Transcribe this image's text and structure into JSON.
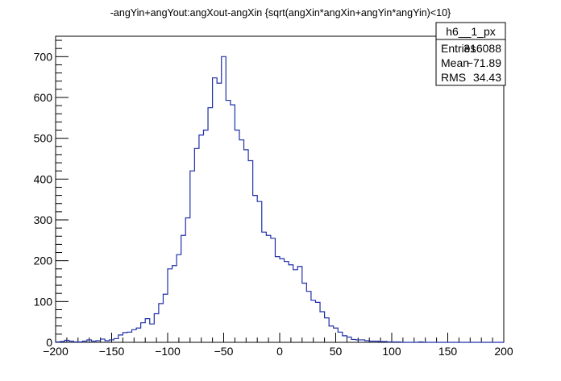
{
  "chart_data": {
    "type": "histogram",
    "title": "-angYin+angYout:angXout-angXin {sqrt(angXin*angXin+angYin*angYin)<10}",
    "xlim": [
      -200,
      200
    ],
    "ylim": [
      0,
      750
    ],
    "x_ticks": [
      -200,
      -150,
      -100,
      -50,
      0,
      50,
      100,
      150,
      200
    ],
    "x_tick_labels": [
      "−200",
      "−150",
      "−100",
      "−50",
      "0",
      "50",
      "100",
      "150",
      "200"
    ],
    "y_ticks": [
      0,
      100,
      200,
      300,
      400,
      500,
      600,
      700
    ],
    "y_tick_labels": [
      "0",
      "100",
      "200",
      "300",
      "400",
      "500",
      "600",
      "700"
    ],
    "bin_width": 4,
    "bin_edges_start": -200,
    "values": [
      1,
      2,
      5,
      3,
      1,
      1,
      3,
      6,
      3,
      4,
      8,
      4,
      6,
      9,
      18,
      24,
      25,
      31,
      35,
      48,
      58,
      45,
      70,
      95,
      118,
      180,
      188,
      215,
      262,
      305,
      420,
      475,
      508,
      520,
      575,
      648,
      635,
      700,
      593,
      582,
      520,
      496,
      472,
      445,
      360,
      345,
      270,
      262,
      255,
      210,
      205,
      198,
      190,
      178,
      186,
      145,
      125,
      103,
      98,
      75,
      60,
      40,
      35,
      25,
      16,
      13,
      7,
      6,
      6,
      4,
      3,
      3,
      2,
      2,
      1,
      1,
      1,
      0,
      0,
      0,
      0,
      1,
      0,
      0,
      0,
      0,
      0,
      0,
      0,
      0,
      0,
      0,
      0,
      0,
      0,
      0,
      0,
      0,
      0,
      0
    ],
    "line_color": "#1f2fa8",
    "grid": false,
    "legend": "none",
    "stats_box": {
      "name": "h6__1_px",
      "rows": [
        {
          "label": "Entries",
          "value": "316088"
        },
        {
          "label": "Mean",
          "value": "−71.89"
        },
        {
          "label": "RMS",
          "value": "34.43"
        }
      ],
      "placement": "top-right"
    }
  }
}
